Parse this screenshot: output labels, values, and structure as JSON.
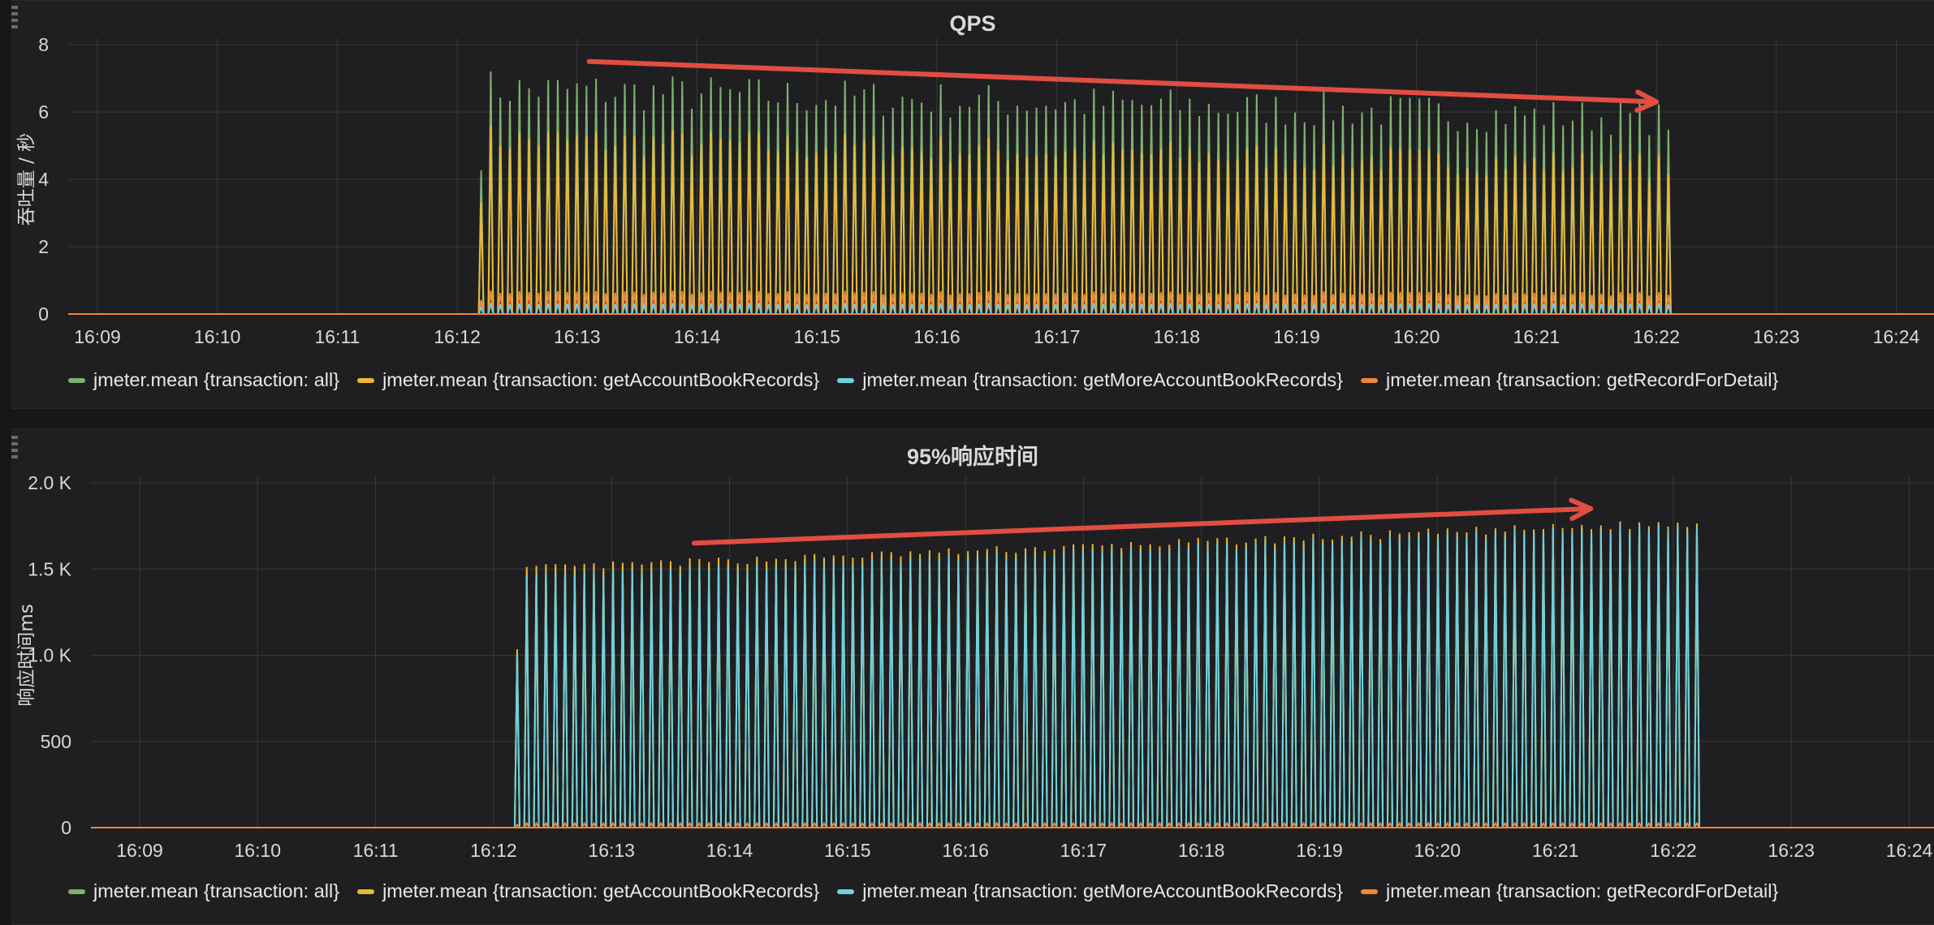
{
  "colors": {
    "all": "#7eb26d",
    "getAccountBookRecords": "#eab839",
    "getMoreAccountBookRecords": "#6ed0e0",
    "getRecordForDetail": "#ef843c",
    "annotation_arrow": "#e24d42",
    "grid": "#3a3a3c"
  },
  "legend": [
    {
      "label": "jmeter.mean {transaction: all}",
      "color_key": "all"
    },
    {
      "label": "jmeter.mean {transaction: getAccountBookRecords}",
      "color_key": "getAccountBookRecords"
    },
    {
      "label": "jmeter.mean {transaction: getMoreAccountBookRecords}",
      "color_key": "getMoreAccountBookRecords"
    },
    {
      "label": "jmeter.mean {transaction: getRecordForDetail}",
      "color_key": "getRecordForDetail"
    }
  ],
  "chart_data": [
    {
      "id": "qps",
      "type": "line",
      "title": "QPS",
      "ylabel": "吞吐量 / 秒",
      "xlabel": "",
      "grid": true,
      "legend_position": "bottom",
      "x_ticks": [
        "16:09",
        "16:10",
        "16:11",
        "16:12",
        "16:13",
        "16:14",
        "16:15",
        "16:16",
        "16:17",
        "16:18",
        "16:19",
        "16:20",
        "16:21",
        "16:22",
        "16:23",
        "16:24"
      ],
      "y_ticks": [
        "0",
        "2",
        "4",
        "6",
        "8"
      ],
      "ylim": [
        0,
        8
      ],
      "xlim": [
        "16:09",
        "16:24"
      ],
      "active_range": [
        "16:12.2",
        "16:22.1"
      ],
      "peak_trend": {
        "start": 6.7,
        "end": 5.8
      },
      "series": [
        {
          "name": "jmeter.mean {transaction: all}",
          "color_key": "all",
          "peak_start": 6.7,
          "peak_end": 5.8
        },
        {
          "name": "jmeter.mean {transaction: getAccountBookRecords}",
          "color_key": "getAccountBookRecords",
          "peak_start": 5.2,
          "peak_end": 4.4
        },
        {
          "name": "jmeter.mean {transaction: getMoreAccountBookRecords}",
          "color_key": "getMoreAccountBookRecords",
          "peak_start": 0.3,
          "peak_end": 0.3
        },
        {
          "name": "jmeter.mean {transaction: getRecordForDetail}",
          "color_key": "getRecordForDetail",
          "peak_start": 0.65,
          "peak_end": 0.6
        }
      ],
      "annotation_arrow": {
        "from": [
          "16:13.1",
          7.5
        ],
        "to": [
          "16:22.0",
          6.3
        ],
        "direction": "downward trend"
      }
    },
    {
      "id": "rt",
      "type": "line",
      "title": "95%响应时间",
      "ylabel": "响应时间ms",
      "xlabel": "",
      "grid": true,
      "legend_position": "bottom",
      "x_ticks": [
        "16:09",
        "16:10",
        "16:11",
        "16:12",
        "16:13",
        "16:14",
        "16:15",
        "16:16",
        "16:17",
        "16:18",
        "16:19",
        "16:20",
        "16:21",
        "16:22",
        "16:23",
        "16:24"
      ],
      "y_ticks": [
        "0",
        "500",
        "1.0 K",
        "1.5 K",
        "2.0 K"
      ],
      "ylim": [
        0,
        2000
      ],
      "xlim": [
        "16:09",
        "16:24"
      ],
      "active_range": [
        "16:12.2",
        "16:22.2"
      ],
      "peak_trend": {
        "start": 1480,
        "end": 1760
      },
      "series": [
        {
          "name": "jmeter.mean {transaction: all}",
          "color_key": "all",
          "peak_start": 1480,
          "peak_end": 1750
        },
        {
          "name": "jmeter.mean {transaction: getAccountBookRecords}",
          "color_key": "getAccountBookRecords",
          "peak_start": 1500,
          "peak_end": 1770
        },
        {
          "name": "jmeter.mean {transaction: getMoreAccountBookRecords}",
          "color_key": "getMoreAccountBookRecords",
          "peak_start": 1450,
          "peak_end": 1750
        },
        {
          "name": "jmeter.mean {transaction: getRecordForDetail}",
          "color_key": "getRecordForDetail",
          "peak_start": 25,
          "peak_end": 25
        }
      ],
      "annotation_arrow": {
        "from": [
          "16:13.7",
          1650
        ],
        "to": [
          "16:21.3",
          1850
        ],
        "direction": "upward trend"
      }
    }
  ]
}
